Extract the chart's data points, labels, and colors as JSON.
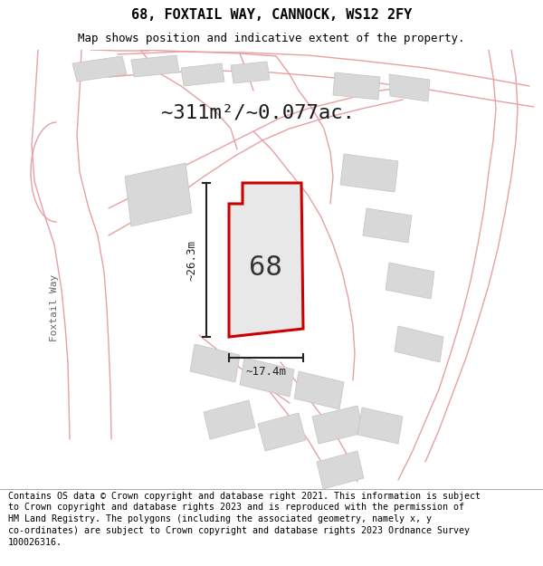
{
  "title": "68, FOXTAIL WAY, CANNOCK, WS12 2FY",
  "subtitle": "Map shows position and indicative extent of the property.",
  "area_label": "~311m²/~0.077ac.",
  "plot_number": "68",
  "width_label": "~17.4m",
  "height_label": "~26.3m",
  "street_label": "Foxtail Way",
  "footer_text": "Contains OS data © Crown copyright and database right 2021. This information is subject to Crown copyright and database rights 2023 and is reproduced with the permission of HM Land Registry. The polygons (including the associated geometry, namely x, y co-ordinates) are subject to Crown copyright and database rights 2023 Ordnance Survey 100026316.",
  "map_bg": "#faf8f8",
  "plot_fill": "#e8e8e8",
  "plot_edge": "#cc0000",
  "road_stroke": "#e8a0a0",
  "road_fill": "#f5eded",
  "building_fill": "#d8d8d8",
  "building_edge": "#c8c8c8",
  "dim_color": "#222222",
  "street_label_color": "#555555",
  "title_fontsize": 11,
  "subtitle_fontsize": 9,
  "footer_fontsize": 7.2,
  "area_fontsize": 16,
  "number_fontsize": 22,
  "dim_fontsize": 9
}
